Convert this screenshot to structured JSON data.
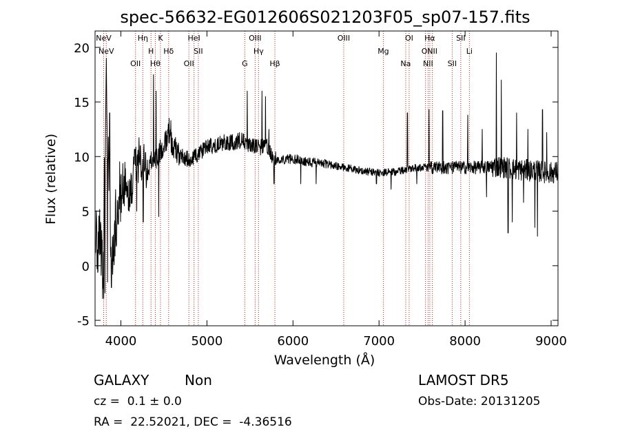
{
  "chart_data": {
    "type": "line",
    "title": "spec-56632-EG012606S021203F05_sp07-157.fits",
    "xlabel": "Wavelength (Å)",
    "ylabel": "Flux (relative)",
    "xlim": [
      3700,
      9080
    ],
    "ylim": [
      -5.5,
      21.5
    ],
    "x_ticks": [
      4000,
      5000,
      6000,
      7000,
      8000,
      9000
    ],
    "y_ticks": [
      -5,
      0,
      5,
      10,
      15,
      20
    ],
    "grid": false,
    "legend": "none",
    "line_color": "#000000",
    "marker_line_color": "#b22222",
    "spectrum_knots": [
      [
        3700,
        3.0
      ],
      [
        3730,
        1.0
      ],
      [
        3760,
        4.0
      ],
      [
        3790,
        -1.0
      ],
      [
        3830,
        17.0
      ],
      [
        3860,
        8.0
      ],
      [
        3900,
        0.0
      ],
      [
        3950,
        5.0
      ],
      [
        4000,
        7.0
      ],
      [
        4050,
        7.5
      ],
      [
        4100,
        6.0
      ],
      [
        4150,
        8.5
      ],
      [
        4200,
        9.5
      ],
      [
        4250,
        10.0
      ],
      [
        4300,
        8.5
      ],
      [
        4350,
        10.0
      ],
      [
        4400,
        9.5
      ],
      [
        4450,
        10.5
      ],
      [
        4500,
        11.0
      ],
      [
        4550,
        12.0
      ],
      [
        4600,
        11.0
      ],
      [
        4700,
        10.0
      ],
      [
        4800,
        9.7
      ],
      [
        4900,
        10.2
      ],
      [
        5000,
        11.0
      ],
      [
        5100,
        11.0
      ],
      [
        5200,
        11.3
      ],
      [
        5300,
        11.3
      ],
      [
        5400,
        11.5
      ],
      [
        5500,
        11.0
      ],
      [
        5600,
        10.8
      ],
      [
        5700,
        11.0
      ],
      [
        5750,
        10.0
      ],
      [
        5800,
        9.7
      ],
      [
        6000,
        9.8
      ],
      [
        6200,
        9.5
      ],
      [
        6400,
        9.3
      ],
      [
        6600,
        9.0
      ],
      [
        6800,
        8.7
      ],
      [
        7000,
        8.5
      ],
      [
        7200,
        8.6
      ],
      [
        7400,
        9.0
      ],
      [
        7600,
        9.0
      ],
      [
        7800,
        9.0
      ],
      [
        8000,
        9.0
      ],
      [
        8200,
        9.0
      ],
      [
        8400,
        9.1
      ],
      [
        8600,
        8.8
      ],
      [
        8800,
        8.7
      ],
      [
        9000,
        8.5
      ],
      [
        9080,
        8.6
      ]
    ],
    "spectrum_features": [
      [
        3800,
        -3.0
      ],
      [
        3815,
        -2.5
      ],
      [
        3830,
        19.0
      ],
      [
        3845,
        -1.5
      ],
      [
        3870,
        14.0
      ],
      [
        3890,
        -2.0
      ],
      [
        3960,
        6.0
      ],
      [
        4185,
        5.0
      ],
      [
        4260,
        4.0
      ],
      [
        4380,
        17.5
      ],
      [
        4410,
        16.0
      ],
      [
        4440,
        4.5
      ],
      [
        4560,
        13.5
      ],
      [
        4580,
        13.3
      ],
      [
        5470,
        16.0
      ],
      [
        5640,
        16.0
      ],
      [
        5680,
        15.5
      ],
      [
        5720,
        12.5
      ],
      [
        5780,
        7.5
      ],
      [
        6090,
        7.5
      ],
      [
        6270,
        7.5
      ],
      [
        6970,
        7.5
      ],
      [
        7140,
        7.0
      ],
      [
        7330,
        14.0
      ],
      [
        7440,
        7.5
      ],
      [
        7580,
        14.3
      ],
      [
        7740,
        14.2
      ],
      [
        8030,
        13.8
      ],
      [
        8200,
        12.5
      ],
      [
        8250,
        6.3
      ],
      [
        8365,
        19.5
      ],
      [
        8420,
        17.0
      ],
      [
        8500,
        3.0
      ],
      [
        8550,
        4.0
      ],
      [
        8600,
        14.0
      ],
      [
        8680,
        5.8
      ],
      [
        8730,
        12.5
      ],
      [
        8810,
        3.5
      ],
      [
        8840,
        2.7
      ],
      [
        8900,
        14.3
      ],
      [
        8950,
        12.2
      ]
    ],
    "emission_markers": [
      {
        "label": "NeV",
        "x": 3800
      },
      {
        "label": "NeV",
        "x": 3830
      },
      {
        "label": "OII",
        "x": 4170
      },
      {
        "label": "Hη",
        "x": 4255
      },
      {
        "label": "H",
        "x": 4350
      },
      {
        "label": "Hθ",
        "x": 4400
      },
      {
        "label": "K",
        "x": 4460
      },
      {
        "label": "Hδ",
        "x": 4555
      },
      {
        "label": "OII",
        "x": 4790
      },
      {
        "label": "HeI",
        "x": 4850
      },
      {
        "label": "SII",
        "x": 4900
      },
      {
        "label": "G",
        "x": 5440
      },
      {
        "label": "OIII",
        "x": 5560
      },
      {
        "label": "Hγ",
        "x": 5600
      },
      {
        "label": "Hβ",
        "x": 5790
      },
      {
        "label": "OIII",
        "x": 6590
      },
      {
        "label": "Mg",
        "x": 7050
      },
      {
        "label": "Na",
        "x": 7310
      },
      {
        "label": "OI",
        "x": 7350
      },
      {
        "label": "OI",
        "x": 7540
      },
      {
        "label": "NII",
        "x": 7570
      },
      {
        "label": "Hα",
        "x": 7590
      },
      {
        "label": "NII",
        "x": 7620
      },
      {
        "label": "SII",
        "x": 7850
      },
      {
        "label": "SII",
        "x": 7950
      },
      {
        "label": "Li",
        "x": 8050
      }
    ]
  },
  "info": {
    "class_label": "GALAXY",
    "subclass_label": "Non",
    "redshift_label": "cz =  0.1 ± 0.0",
    "coords_label": "RA =  22.52021, DEC =  -4.36516",
    "survey_label": "LAMOST DR5",
    "obs_date_label": "Obs-Date: 20131205"
  }
}
